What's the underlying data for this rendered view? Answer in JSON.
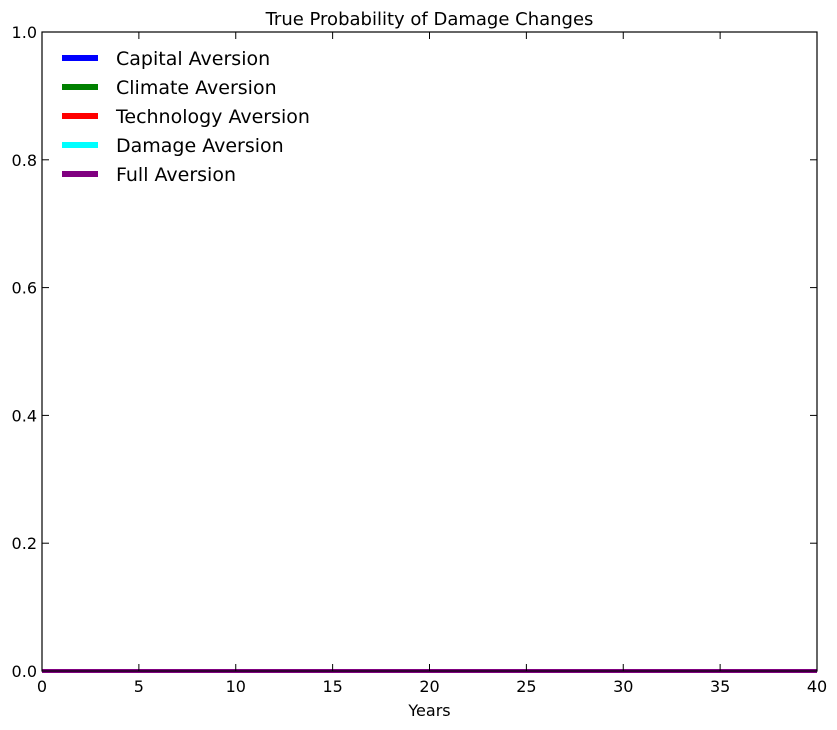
{
  "chart_data": {
    "type": "line",
    "title": "True Probability of Damage Changes",
    "xlabel": "Years",
    "ylabel": "",
    "xlim": [
      0,
      40
    ],
    "ylim": [
      0.0,
      1.0
    ],
    "x_ticks": [
      "0",
      "5",
      "10",
      "15",
      "20",
      "25",
      "30",
      "35",
      "40"
    ],
    "y_ticks": [
      "0.0",
      "0.2",
      "0.4",
      "0.6",
      "0.8",
      "1.0"
    ],
    "grid": false,
    "legend_position": "top-left",
    "series": [
      {
        "name": "Capital Aversion",
        "color": "#0000ff",
        "x": [
          0,
          40
        ],
        "y": [
          0,
          0
        ]
      },
      {
        "name": "Climate Aversion",
        "color": "#008000",
        "x": [
          0,
          40
        ],
        "y": [
          0,
          0
        ]
      },
      {
        "name": "Technology Aversion",
        "color": "#ff0000",
        "x": [
          0,
          40
        ],
        "y": [
          0,
          0
        ]
      },
      {
        "name": "Damage Aversion",
        "color": "#00ffff",
        "x": [
          0,
          40
        ],
        "y": [
          0,
          0
        ]
      },
      {
        "name": "Full Aversion",
        "color": "#800080",
        "x": [
          0,
          40
        ],
        "y": [
          0,
          0
        ]
      }
    ]
  }
}
